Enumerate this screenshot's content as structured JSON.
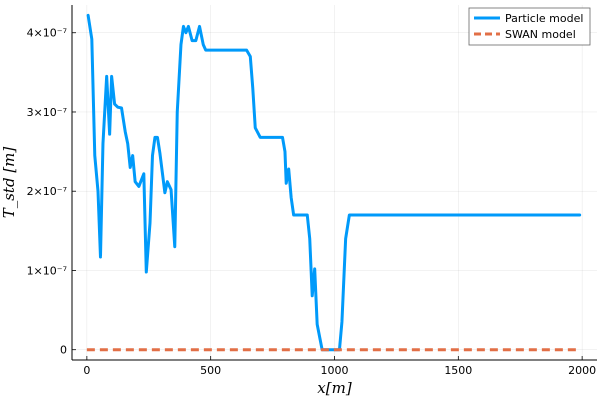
{
  "chart_data": {
    "type": "line",
    "title": "",
    "xlabel": "x[m]",
    "ylabel": "T_std [m]",
    "xlim": [
      -60,
      2060
    ],
    "ylim": [
      -1.3e-08,
      4.35e-07
    ],
    "x_ticks": [
      0,
      500,
      1000,
      1500,
      2000
    ],
    "x_tick_labels": [
      "0",
      "500",
      "1000",
      "1500",
      "2000"
    ],
    "y_ticks": [
      0,
      1e-07,
      2e-07,
      3e-07,
      4e-07
    ],
    "y_tick_labels": [
      "0",
      "1×10⁻⁷",
      "2×10⁻⁷",
      "3×10⁻⁷",
      "4×10⁻⁷"
    ],
    "grid": true,
    "legend_position": "top-right",
    "series": [
      {
        "name": "Particle model",
        "color": "#009AFA",
        "style": "solid",
        "x": [
          5,
          20,
          32,
          45,
          55,
          65,
          80,
          92,
          100,
          112,
          125,
          140,
          155,
          165,
          175,
          185,
          195,
          210,
          230,
          240,
          255,
          265,
          275,
          285,
          295,
          315,
          325,
          340,
          355,
          365,
          380,
          390,
          400,
          410,
          425,
          440,
          455,
          470,
          480,
          500,
          520,
          560,
          600,
          625,
          645,
          660,
          670,
          680,
          700,
          730,
          760,
          775,
          790,
          800,
          805,
          815,
          825,
          835,
          855,
          870,
          890,
          900,
          910,
          920,
          930,
          950,
          960,
          975,
          1000,
          1020,
          1030,
          1045,
          1060,
          1100,
          1200,
          1400,
          1600,
          1800,
          1990
        ],
        "y": [
          4.22e-07,
          3.92e-07,
          2.45e-07,
          2e-07,
          1.17e-07,
          2.6e-07,
          3.45e-07,
          2.72e-07,
          3.45e-07,
          3.1e-07,
          3.06e-07,
          3.05e-07,
          2.75e-07,
          2.6e-07,
          2.3e-07,
          2.45e-07,
          2.12e-07,
          2.06e-07,
          2.22e-07,
          9.8e-08,
          1.6e-07,
          2.45e-07,
          2.68e-07,
          2.68e-07,
          2.48e-07,
          1.98e-07,
          2.12e-07,
          2.02e-07,
          1.3e-07,
          3e-07,
          3.85e-07,
          4.08e-07,
          4e-07,
          4.08e-07,
          3.9e-07,
          3.9e-07,
          4.08e-07,
          3.85e-07,
          3.78e-07,
          3.78e-07,
          3.78e-07,
          3.78e-07,
          3.78e-07,
          3.78e-07,
          3.78e-07,
          3.7e-07,
          3.3e-07,
          2.8e-07,
          2.68e-07,
          2.68e-07,
          2.68e-07,
          2.68e-07,
          2.68e-07,
          2.5e-07,
          2.1e-07,
          2.28e-07,
          1.92e-07,
          1.7e-07,
          1.7e-07,
          1.7e-07,
          1.7e-07,
          1.4e-07,
          6.8e-08,
          1.02e-07,
          3.2e-08,
          0,
          0,
          0,
          0,
          0,
          3.5e-08,
          1.4e-07,
          1.7e-07,
          1.7e-07,
          1.7e-07,
          1.7e-07,
          1.7e-07,
          1.7e-07,
          1.7e-07
        ]
      },
      {
        "name": "SWAN model",
        "color": "#E26F46",
        "style": "dashed",
        "x": [
          0,
          1990
        ],
        "y": [
          0,
          0
        ]
      }
    ]
  }
}
